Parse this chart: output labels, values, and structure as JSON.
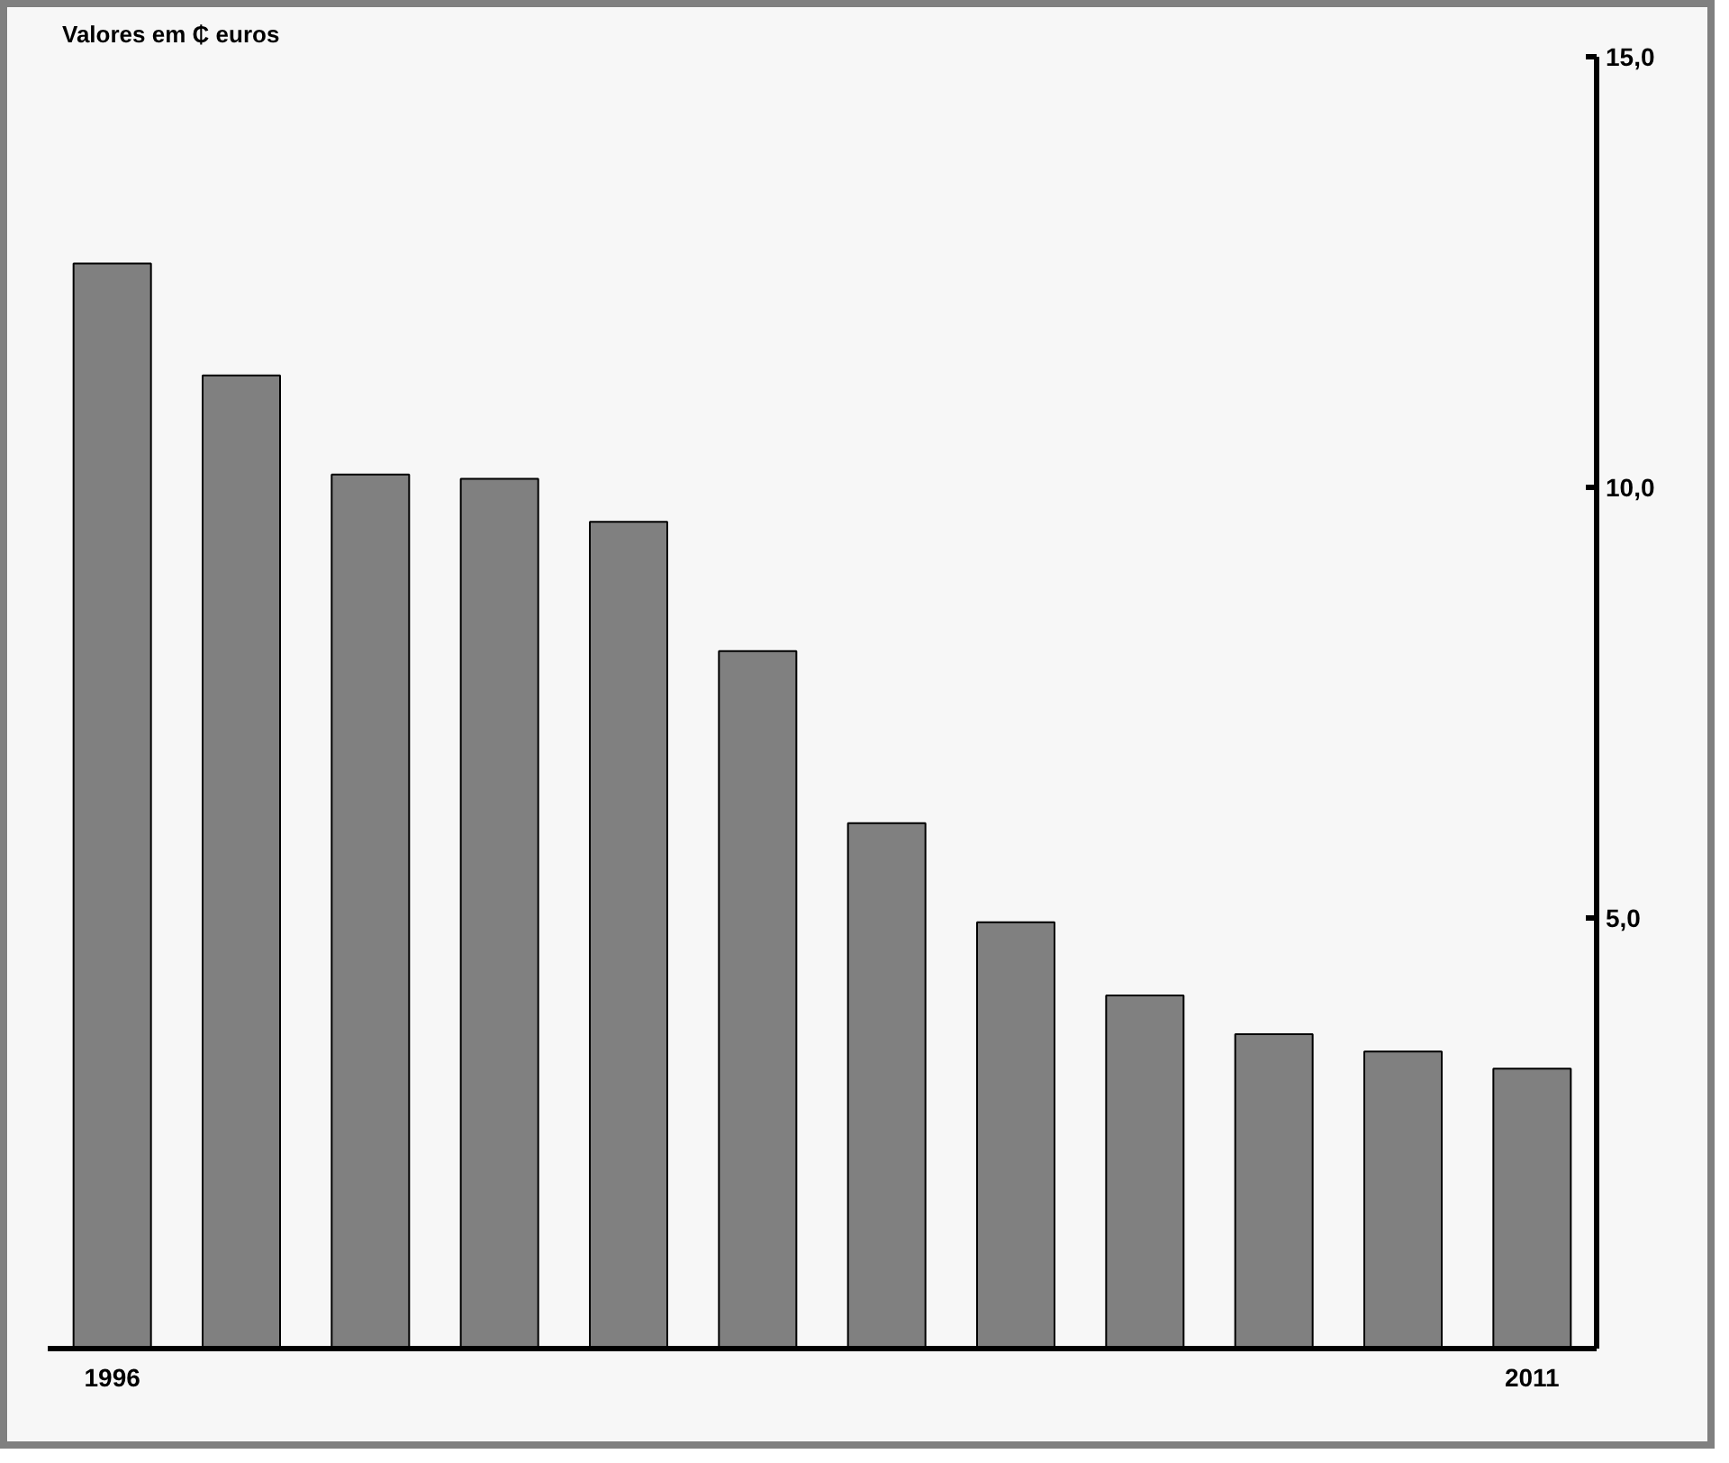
{
  "chart_data": {
    "type": "bar",
    "title": "Valores em ₵ euros",
    "categories": [
      "1996",
      null,
      null,
      null,
      null,
      null,
      null,
      null,
      null,
      null,
      null,
      "2011"
    ],
    "values": [
      12.6,
      11.3,
      10.15,
      10.1,
      9.6,
      8.1,
      6.1,
      4.95,
      4.1,
      3.65,
      3.45,
      3.25
    ],
    "color": "#808080",
    "ylim": [
      0,
      15
    ],
    "yticks": [
      {
        "value": 5,
        "label": "5,0"
      },
      {
        "value": 10,
        "label": "10,0"
      },
      {
        "value": 15,
        "label": "15,0"
      }
    ],
    "grid": false
  }
}
